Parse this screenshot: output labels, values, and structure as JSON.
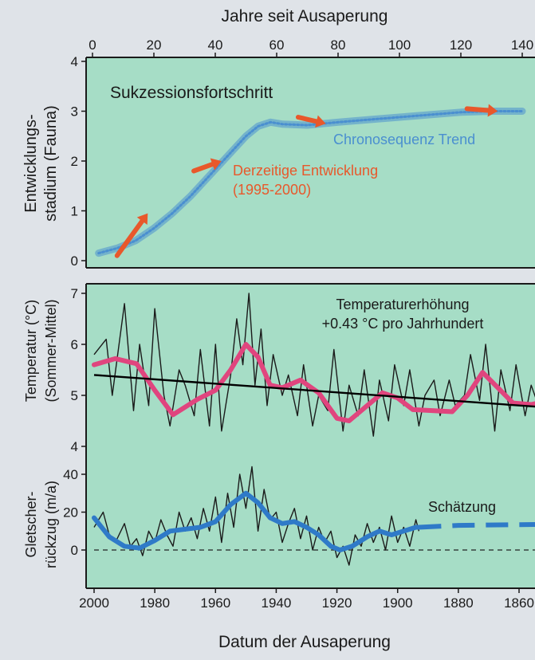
{
  "chart_data": [
    {
      "type": "line",
      "title": "Sukzessionsfortschritt",
      "xlabel": "Jahre seit Ausaperung",
      "ylabel": "Entwicklungs-\nstadium (Fauna)",
      "ylabel_lines": [
        "Entwicklungs-",
        "stadium (Fauna)"
      ],
      "xlim": [
        0,
        145
      ],
      "ylim": [
        0,
        4
      ],
      "x_ticks": [
        0,
        20,
        40,
        60,
        80,
        100,
        120,
        140
      ],
      "y_ticks": [
        0,
        1,
        2,
        3,
        4
      ],
      "grid": false,
      "series": [
        {
          "name": "Chronosequenz Trend",
          "color": "#4a8fd0",
          "x": [
            2,
            8,
            14,
            20,
            26,
            32,
            38,
            44,
            50,
            54,
            58,
            62,
            70,
            80,
            90,
            100,
            110,
            120,
            130,
            140
          ],
          "y": [
            0.15,
            0.25,
            0.4,
            0.65,
            0.95,
            1.3,
            1.7,
            2.1,
            2.5,
            2.7,
            2.78,
            2.74,
            2.72,
            2.78,
            2.83,
            2.88,
            2.93,
            2.98,
            3.0,
            3.0
          ]
        }
      ],
      "annotation": {
        "label_lines": [
          "Derzeitige Entwicklung",
          "(1995-2000)"
        ],
        "color": "#e8582b",
        "arrows": [
          {
            "x": [
              8,
              18
            ],
            "y": [
              0.1,
              0.95
            ]
          },
          {
            "x": [
              33,
              42
            ],
            "y": [
              1.8,
              2.0
            ]
          },
          {
            "x": [
              67,
              76
            ],
            "y": [
              2.88,
              2.75
            ]
          },
          {
            "x": [
              122,
              132
            ],
            "y": [
              3.05,
              3.0
            ]
          }
        ]
      }
    },
    {
      "type": "line",
      "ylabel": "Temperatur (°C)\n(Sommer-Mittel)",
      "ylabel_lines": [
        "Temperatur (°C)",
        "(Sommer-Mittel)"
      ],
      "xlim": [
        2000,
        1850
      ],
      "ylim": [
        4,
        7
      ],
      "y_ticks": [
        4,
        5,
        6,
        7
      ],
      "grid": false,
      "annotation_lines": [
        "Temperaturerhöhung",
        "+0.43 °C pro Jahrhundert"
      ],
      "series": [
        {
          "name": "annual",
          "color": "#1a1a1a",
          "x": [
            2000,
            1996,
            1994,
            1990,
            1987,
            1985,
            1982,
            1980,
            1977,
            1975,
            1972,
            1970,
            1967,
            1965,
            1962,
            1960,
            1958,
            1955,
            1953,
            1951,
            1949,
            1947,
            1945,
            1943,
            1941,
            1938,
            1936,
            1933,
            1931,
            1928,
            1926,
            1923,
            1921,
            1918,
            1916,
            1913,
            1911,
            1908,
            1906,
            1903,
            1901,
            1898,
            1896,
            1893,
            1891,
            1888,
            1886,
            1883,
            1881,
            1878,
            1876,
            1873,
            1871,
            1868,
            1866,
            1863,
            1861,
            1858,
            1856,
            1853,
            1851
          ],
          "y": [
            5.8,
            6.1,
            5.0,
            6.8,
            4.7,
            6.0,
            4.8,
            6.7,
            5.0,
            4.4,
            5.5,
            5.2,
            4.6,
            5.9,
            4.4,
            6.0,
            4.3,
            5.4,
            6.5,
            5.6,
            7.0,
            5.2,
            6.3,
            4.8,
            5.8,
            5.0,
            5.4,
            4.6,
            5.6,
            4.4,
            5.0,
            4.7,
            5.9,
            4.3,
            5.2,
            4.6,
            5.5,
            4.2,
            5.3,
            4.5,
            5.6,
            4.8,
            5.5,
            4.4,
            5.0,
            5.3,
            4.6,
            5.3,
            4.8,
            5.0,
            5.8,
            4.9,
            6.0,
            4.3,
            5.5,
            4.7,
            5.6,
            4.6,
            5.2,
            4.7,
            5.3
          ]
        },
        {
          "name": "smoothed",
          "color": "#e0457e",
          "x": [
            2000,
            1993,
            1986,
            1980,
            1974,
            1966,
            1960,
            1955,
            1950,
            1946,
            1942,
            1938,
            1932,
            1926,
            1920,
            1916,
            1911,
            1905,
            1900,
            1895,
            1888,
            1882,
            1877,
            1872,
            1867,
            1862,
            1856,
            1850
          ],
          "y": [
            5.6,
            5.72,
            5.62,
            5.1,
            4.62,
            4.92,
            5.1,
            5.5,
            6.0,
            5.75,
            5.2,
            5.15,
            5.3,
            5.05,
            4.55,
            4.5,
            4.75,
            5.05,
            4.95,
            4.72,
            4.7,
            4.68,
            5.0,
            5.45,
            5.15,
            4.85,
            4.82,
            4.9
          ]
        },
        {
          "name": "trend",
          "color": "#000000",
          "x": [
            2000,
            1850
          ],
          "y": [
            5.4,
            4.76
          ]
        }
      ]
    },
    {
      "type": "line",
      "xlabel": "Datum der Ausaperung",
      "ylabel": "Gletscher-\nrückzug (m/a)",
      "ylabel_lines": [
        "Gletscher-",
        "rückzug (m/a)"
      ],
      "xlim": [
        2000,
        1850
      ],
      "ylim": [
        -12,
        44
      ],
      "x_ticks": [
        2000,
        1980,
        1960,
        1940,
        1920,
        1900,
        1880,
        1860
      ],
      "y_ticks": [
        0,
        20,
        40
      ],
      "grid": false,
      "annotation": "Schätzung",
      "series": [
        {
          "name": "annual",
          "color": "#1a1a1a",
          "x": [
            2000,
            1997,
            1995,
            1993,
            1990,
            1988,
            1986,
            1984,
            1982,
            1980,
            1978,
            1976,
            1974,
            1972,
            1970,
            1968,
            1966,
            1964,
            1962,
            1960,
            1958,
            1956,
            1954,
            1952,
            1950,
            1948,
            1946,
            1944,
            1942,
            1940,
            1938,
            1936,
            1934,
            1932,
            1930,
            1928,
            1926,
            1924,
            1922,
            1920,
            1918,
            1916,
            1914,
            1912,
            1910,
            1908,
            1906,
            1904,
            1902,
            1900,
            1898,
            1896,
            1894,
            1893
          ],
          "y": [
            12,
            20,
            8,
            4,
            14,
            2,
            6,
            -3,
            10,
            4,
            16,
            8,
            2,
            20,
            10,
            17,
            6,
            22,
            10,
            28,
            4,
            30,
            12,
            40,
            22,
            44,
            10,
            32,
            16,
            20,
            4,
            14,
            22,
            6,
            18,
            0,
            12,
            4,
            10,
            -4,
            2,
            -8,
            8,
            2,
            14,
            4,
            12,
            0,
            18,
            4,
            12,
            2,
            16,
            10
          ],
          "line_style": "solid"
        },
        {
          "name": "smoothed",
          "color": "#2f7ac8",
          "x": [
            2000,
            1995,
            1990,
            1985,
            1980,
            1975,
            1970,
            1965,
            1960,
            1955,
            1950,
            1946,
            1942,
            1938,
            1934,
            1930,
            1926,
            1922,
            1919,
            1915,
            1910,
            1906,
            1902,
            1898,
            1894,
            1893
          ],
          "y": [
            17,
            7,
            2,
            1,
            5,
            10,
            11,
            12,
            15,
            24,
            30,
            25,
            17,
            14,
            15,
            12,
            8,
            2,
            0,
            2,
            7,
            10,
            8,
            10,
            12,
            12
          ],
          "line_style": "solid"
        },
        {
          "name": "Schätzung",
          "color": "#2f7ac8",
          "x": [
            1893,
            1880,
            1870,
            1860,
            1850
          ],
          "y": [
            12,
            13,
            13.2,
            13.4,
            13.5
          ],
          "line_style": "dashed"
        },
        {
          "name": "zero",
          "color": "#222222",
          "x": [
            2000,
            1850
          ],
          "y": [
            0,
            0
          ],
          "line_style": "dashed"
        }
      ]
    }
  ],
  "colors": {
    "plot_background": "#a6ddc6",
    "frame_background": "#dfe3e8",
    "axis": "#1a1a1a",
    "annotation_orange": "#e8582b",
    "trend_blue": "#4a8fd0"
  }
}
